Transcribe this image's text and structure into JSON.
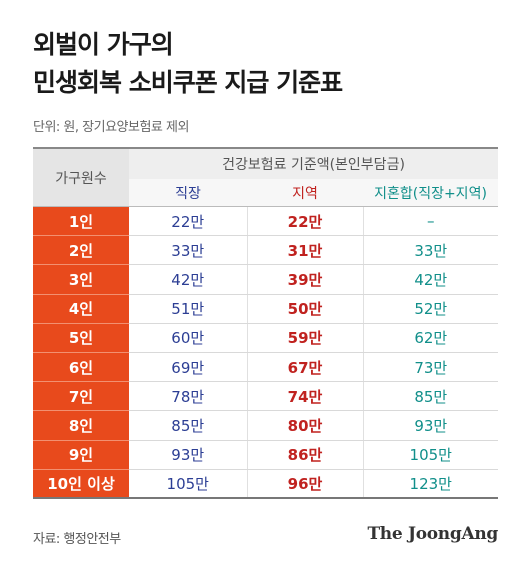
{
  "title": {
    "line1": "외벌이 가구의",
    "line2": "민생회복 소비쿠폰 지급 기준표"
  },
  "unit_note": "단위: 원, 장기요양보험료 제외",
  "table": {
    "left_header": "가구원수",
    "group_header": "건강보험료 기준액(본인부담금)",
    "sub_headers": [
      "직장",
      "지역",
      "지혼합(직장+지역)"
    ],
    "rows": [
      {
        "label": "1인",
        "jikjang": "22만",
        "jiyeok": "22만",
        "mixed": "–"
      },
      {
        "label": "2인",
        "jikjang": "33만",
        "jiyeok": "31만",
        "mixed": "33만"
      },
      {
        "label": "3인",
        "jikjang": "42만",
        "jiyeok": "39만",
        "mixed": "42만"
      },
      {
        "label": "4인",
        "jikjang": "51만",
        "jiyeok": "50만",
        "mixed": "52만"
      },
      {
        "label": "5인",
        "jikjang": "60만",
        "jiyeok": "59만",
        "mixed": "62만"
      },
      {
        "label": "6인",
        "jikjang": "69만",
        "jiyeok": "67만",
        "mixed": "73만"
      },
      {
        "label": "7인",
        "jikjang": "78만",
        "jiyeok": "74만",
        "mixed": "85만"
      },
      {
        "label": "8인",
        "jikjang": "85만",
        "jiyeok": "80만",
        "mixed": "93만"
      },
      {
        "label": "9인",
        "jikjang": "93만",
        "jiyeok": "86만",
        "mixed": "105만"
      },
      {
        "label": "10인 이상",
        "jikjang": "105만",
        "jiyeok": "96만",
        "mixed": "123만"
      }
    ]
  },
  "source": "자료: 행정안전부",
  "brand": "The JoongAng",
  "colors": {
    "row_label_bg": "#e84a1c",
    "jikjang": "#2c3e94",
    "jiyeok": "#c0221f",
    "mixed": "#118f8a"
  }
}
